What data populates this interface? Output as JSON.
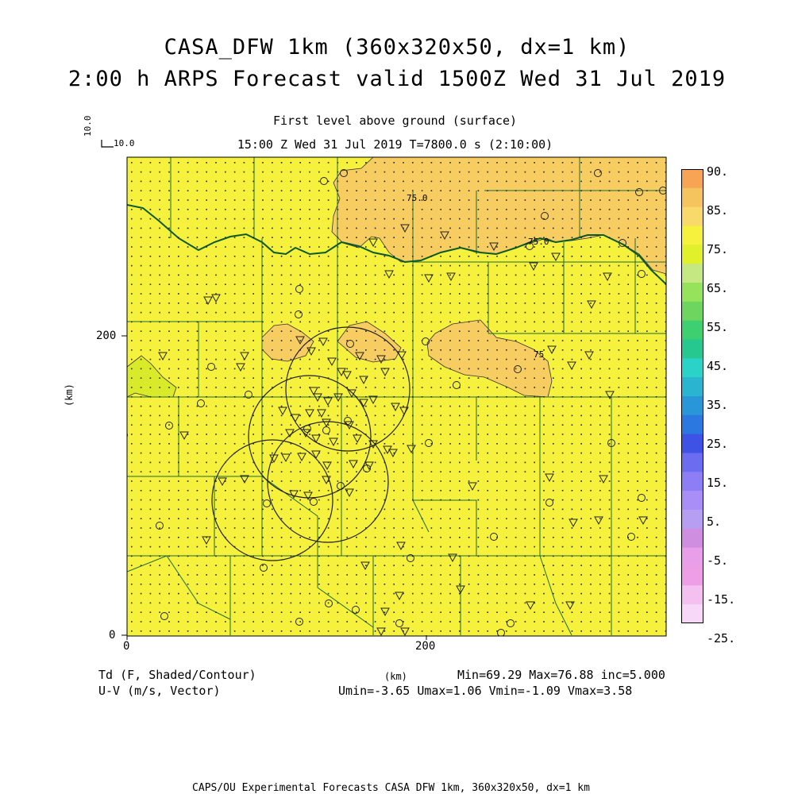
{
  "header": {
    "title_line1": "CASA_DFW 1km (360x320x50, dx=1 km)",
    "title_line2": "2:00 h ARPS Forecast valid 1500Z Wed 31 Jul 2019",
    "level": "First level above ground (surface)",
    "time_line": "15:00 Z Wed 31 Jul 2019   T=7800.0 s (2:10:00)"
  },
  "reference_vector": {
    "u_label": "10.0",
    "v_label": "10.0"
  },
  "axes": {
    "x_ticks": [
      "0",
      "200"
    ],
    "y_ticks": [
      "0",
      "200"
    ],
    "x_label": "(km)",
    "y_label": "(km)",
    "x_range_km": [
      0,
      360
    ],
    "y_range_km": [
      0,
      320
    ]
  },
  "field": {
    "name": "Td (F, Shaded/Contour)",
    "vector_name": "U-V (m/s, Vector)",
    "stats_line1": "Min=69.29 Max=76.88 inc=5.000",
    "stats_line2": "Umin=-3.65 Umax=1.06 Vmin=-1.09 Vmax=3.58",
    "contour_labels": [
      "75.0",
      "75.0",
      "75"
    ],
    "base_color": "#f5f13c",
    "above75_color": "#f7cc60",
    "below70_color": "#d8ea2a"
  },
  "colorbar": {
    "labels": [
      "90.",
      "85.",
      "75.",
      "65.",
      "55.",
      "45.",
      "35.",
      "25.",
      "15.",
      "5.",
      "-5.",
      "-15.",
      "-25."
    ],
    "colors_top_to_bottom": [
      "#f7a455",
      "#f6c45e",
      "#f8d96a",
      "#f5f13c",
      "#e0f02a",
      "#c6e882",
      "#96e25a",
      "#6ed65e",
      "#3ed070",
      "#26c890",
      "#2ad2c8",
      "#2ab4d0",
      "#2896d8",
      "#2a78e0",
      "#3e52e6",
      "#6c6cf0",
      "#8e7ef6",
      "#aa8ef8",
      "#b69ef2",
      "#cf8ee0",
      "#e89ee8",
      "#ee9ee6",
      "#f4c0f0",
      "#f8d8f8"
    ]
  },
  "footer": "CAPS/OU Experimental Forecasts  CASA DFW 1km, 360x320x50, dx=1 km"
}
